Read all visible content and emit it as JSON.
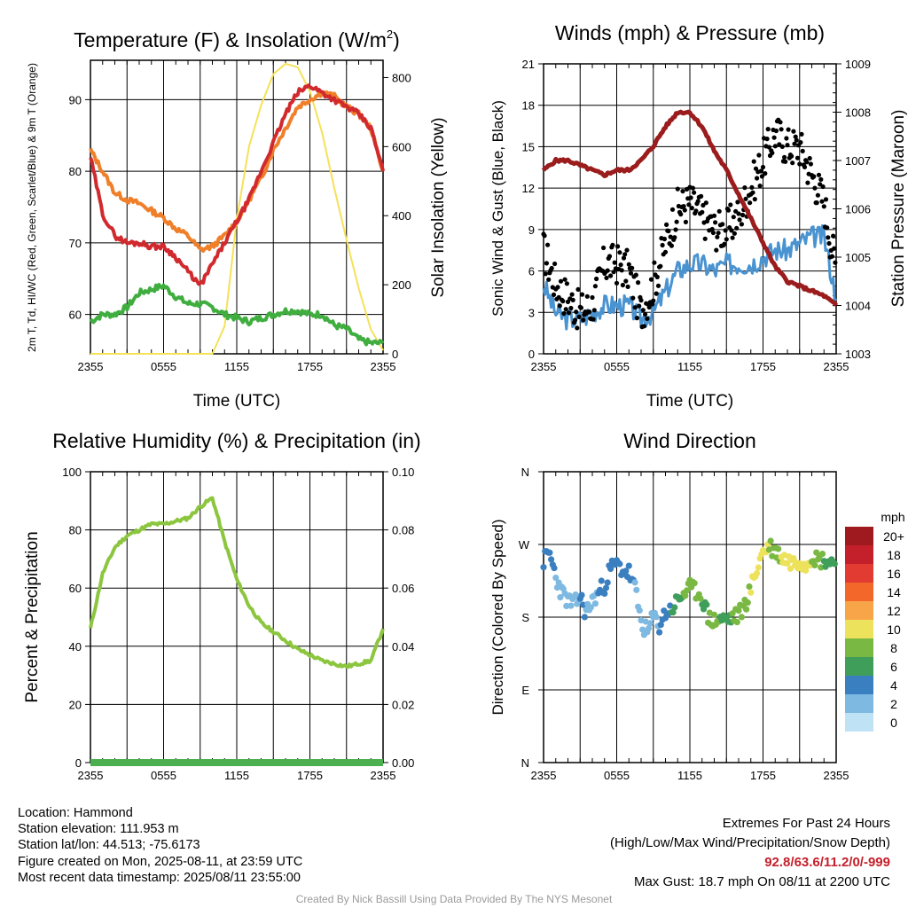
{
  "titles": {
    "temperature": "Temperature (F) & Insolation (W/m",
    "temperature_sup": "2",
    "temperature_close": ")",
    "winds": "Winds (mph) & Pressure (mb)",
    "humidity": "Relative Humidity (%) & Precipitation (in)",
    "direction": "Wind Direction"
  },
  "time_ticks": [
    "2355",
    "0555",
    "1155",
    "1755",
    "2355"
  ],
  "time_label": "Time (UTC)",
  "colors": {
    "temp_2m": "#d12a2e",
    "dewpoint": "#3fae3f",
    "temp_9m": "#f07f2a",
    "solar": "#f5e15a",
    "wind": "#4a93d1",
    "gust": "#000000",
    "pressure": "#9b1c1c",
    "rh": "#8cc63f",
    "precip": "#4caf50"
  },
  "chart_data": [
    {
      "type": "line",
      "id": "temperature",
      "title": "Temperature (F) & Insolation (W/m2)",
      "ylabel": "2m T, Td, HI/WC (Red, Green, Scarlet/Blue) & 9m T (Orange)",
      "y2label": "Solar Insolation (Yellow)",
      "xlabel": "Time (UTC)",
      "ylim": [
        54.5,
        95.5
      ],
      "y2lim": [
        0,
        850
      ],
      "yticks": [
        60,
        70,
        80,
        90
      ],
      "y2ticks": [
        0,
        200,
        400,
        600,
        800
      ],
      "x": [
        0,
        1,
        2,
        3,
        4,
        5,
        6,
        7,
        8,
        9,
        10,
        11,
        12,
        13,
        14,
        15,
        16,
        17,
        18,
        19,
        20,
        21,
        22,
        23,
        24
      ],
      "series": [
        {
          "key": "temp_2m",
          "axis": "left",
          "values": [
            82,
            74,
            71,
            70,
            70,
            69.5,
            69.5,
            68,
            66,
            64,
            67,
            70,
            73,
            76,
            80,
            84,
            88,
            91,
            92,
            91,
            90,
            89,
            88,
            86,
            80
          ]
        },
        {
          "key": "temp_9m",
          "axis": "left",
          "values": [
            83,
            80,
            77,
            76,
            75.5,
            74.5,
            73.5,
            72,
            71,
            69,
            69.5,
            71,
            73,
            76,
            79,
            83,
            86,
            89,
            90,
            91,
            90.5,
            89,
            88,
            86,
            80
          ]
        },
        {
          "key": "dewpoint",
          "axis": "left",
          "values": [
            59,
            60,
            60,
            61,
            63,
            63.5,
            64,
            62.5,
            61.5,
            61.5,
            61,
            60,
            59.5,
            59,
            59.5,
            60,
            60.5,
            60.5,
            60,
            60,
            58.5,
            58,
            56.5,
            56,
            56
          ]
        },
        {
          "key": "solar",
          "axis": "right",
          "values": [
            0,
            0,
            0,
            0,
            0,
            0,
            0,
            0,
            0,
            0,
            0,
            80,
            390,
            600,
            720,
            810,
            840,
            830,
            760,
            640,
            480,
            330,
            190,
            70,
            10
          ]
        }
      ]
    },
    {
      "type": "line",
      "id": "winds",
      "title": "Winds (mph) & Pressure (mb)",
      "ylabel": "Sonic Wind & Gust (Blue, Black)",
      "y2label": "Station Pressure (Maroon)",
      "xlabel": "Time (UTC)",
      "ylim": [
        0,
        21
      ],
      "y2lim": [
        1003,
        1009
      ],
      "yticks": [
        0,
        3,
        6,
        9,
        12,
        15,
        18,
        21
      ],
      "y2ticks": [
        1003,
        1004,
        1005,
        1006,
        1007,
        1008,
        1009
      ],
      "x": [
        0,
        1,
        2,
        3,
        4,
        5,
        6,
        7,
        8,
        9,
        10,
        11,
        12,
        13,
        14,
        15,
        16,
        17,
        18,
        19,
        20,
        21,
        22,
        23,
        24
      ],
      "series": [
        {
          "key": "pressure",
          "axis": "right",
          "values": [
            1006.8,
            1007.0,
            1007.0,
            1006.9,
            1006.8,
            1006.7,
            1006.8,
            1006.8,
            1007.0,
            1007.3,
            1007.7,
            1008.0,
            1008.0,
            1007.7,
            1007.2,
            1006.8,
            1006.3,
            1005.8,
            1005.3,
            1004.8,
            1004.5,
            1004.4,
            1004.3,
            1004.2,
            1004.0
          ]
        },
        {
          "key": "wind",
          "axis": "left",
          "values": [
            5,
            3,
            2.5,
            2.5,
            3,
            3.5,
            3.5,
            3.5,
            2.5,
            3,
            4.5,
            6,
            6.5,
            6.5,
            6,
            6.5,
            6.5,
            6.5,
            7,
            7.5,
            7.5,
            8,
            8.5,
            8.5,
            4
          ]
        },
        {
          "key": "gust",
          "axis": "left",
          "style": "dots",
          "values": [
            7.5,
            5,
            4,
            3,
            3.5,
            6.5,
            6.5,
            6,
            3,
            5,
            8,
            10.5,
            11,
            10,
            9,
            9,
            10,
            12,
            14,
            16,
            15,
            15,
            13,
            11,
            6
          ]
        }
      ]
    },
    {
      "type": "line",
      "id": "humidity",
      "title": "Relative Humidity (%) & Precipitation (in)",
      "ylabel": "Percent & Precipitation",
      "xlabel": "",
      "ylim": [
        0,
        100
      ],
      "y2lim": [
        0,
        0.1
      ],
      "yticks": [
        0,
        20,
        40,
        60,
        80,
        100
      ],
      "y2ticks": [
        "0.00",
        "0.02",
        "0.04",
        "0.06",
        "0.08",
        "0.10"
      ],
      "x": [
        0,
        1,
        2,
        3,
        4,
        5,
        6,
        7,
        8,
        9,
        10,
        11,
        12,
        13,
        14,
        15,
        16,
        17,
        18,
        19,
        20,
        21,
        22,
        23,
        24
      ],
      "series": [
        {
          "key": "rh",
          "axis": "left",
          "values": [
            46,
            65,
            74,
            78,
            80,
            82,
            82,
            83,
            84,
            88,
            91,
            76,
            63,
            54,
            48,
            45,
            42,
            39,
            37,
            35,
            34,
            33,
            34,
            35,
            46
          ]
        },
        {
          "key": "precip",
          "axis": "right",
          "values": [
            0,
            0,
            0,
            0,
            0,
            0,
            0,
            0,
            0,
            0,
            0,
            0,
            0,
            0,
            0,
            0,
            0,
            0,
            0,
            0,
            0,
            0,
            0,
            0,
            0
          ]
        }
      ]
    },
    {
      "type": "scatter",
      "id": "direction",
      "title": "Wind Direction",
      "ylabel": "Direction (Colored By Speed)",
      "yticks": [
        "N",
        "E",
        "S",
        "W",
        "N"
      ],
      "ylim": [
        0,
        360
      ],
      "x": [
        0,
        0.5,
        1,
        1.5,
        2,
        2.5,
        3,
        3.5,
        4,
        4.5,
        5,
        5.5,
        6,
        6.5,
        7,
        7.5,
        8,
        8.5,
        9,
        9.5,
        10,
        10.5,
        11,
        11.5,
        12,
        12.5,
        13,
        13.5,
        14,
        14.5,
        15,
        15.5,
        16,
        16.5,
        17,
        17.5,
        18,
        18.5,
        19,
        19.5,
        20,
        20.5,
        21,
        21.5,
        22,
        22.5,
        23,
        23.5,
        24
      ],
      "values": [
        250,
        258,
        230,
        210,
        200,
        195,
        205,
        185,
        200,
        210,
        220,
        240,
        245,
        238,
        235,
        215,
        175,
        160,
        180,
        170,
        185,
        190,
        200,
        210,
        215,
        212,
        205,
        180,
        175,
        178,
        176,
        180,
        182,
        195,
        215,
        240,
        262,
        268,
        262,
        255,
        250,
        248,
        252,
        245,
        258,
        250,
        252,
        248,
        250
      ],
      "speeds": [
        3,
        4,
        2,
        2,
        2,
        2,
        3,
        2,
        2,
        3,
        3,
        4,
        4,
        4,
        3,
        2,
        2,
        1,
        2,
        3,
        4,
        5,
        6,
        7,
        7,
        7,
        6,
        7,
        7,
        6,
        5,
        7,
        8,
        8,
        9,
        10,
        9,
        8,
        8,
        9,
        9,
        10,
        10,
        9,
        8,
        8,
        6,
        5,
        4
      ]
    }
  ],
  "legend": {
    "unit": "mph",
    "labels": [
      "20+",
      "18",
      "16",
      "14",
      "12",
      "10",
      "8",
      "6",
      "4",
      "2",
      "0"
    ],
    "colors": [
      "#9e1a1e",
      "#c4202b",
      "#e23b32",
      "#f3672b",
      "#f8a54a",
      "#ede25c",
      "#7ab844",
      "#3f9e5a",
      "#3a7fbf",
      "#7eb9e2",
      "#bfe2f5"
    ]
  },
  "info": {
    "location": "Location: Hammond",
    "elevation": "Station elevation: 111.953 m",
    "latlon": "Station lat/lon: 44.513; -75.6173",
    "created": "Figure created on Mon, 2025-08-11, at 23:59 UTC",
    "recent": "Most recent data timestamp: 2025/08/11 23:55:00"
  },
  "extremes": {
    "title": "Extremes For Past 24 Hours",
    "subtitle": "(High/Low/Max Wind/Precipitation/Snow Depth)",
    "values": "92.8/63.6/11.2/0/-999",
    "gust": "Max Gust: 18.7 mph On 08/11 at 2200 UTC"
  },
  "credit": "Created By Nick Bassill Using Data Provided By The NYS Mesonet"
}
